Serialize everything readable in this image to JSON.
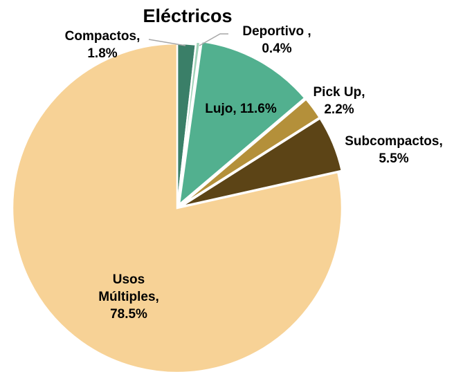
{
  "chart_data": {
    "type": "pie",
    "title": "Eléctricos",
    "slices": [
      {
        "name": "Compactos",
        "value": 1.8,
        "label_lines": [
          "Compactos,",
          "1.8%"
        ],
        "color": "#3a7f68"
      },
      {
        "name": "Deportivo",
        "value": 0.4,
        "label_lines": [
          "Deportivo ,",
          "0.4%"
        ],
        "color": "#9fd3b8"
      },
      {
        "name": "Lujo",
        "value": 11.6,
        "label_lines": [
          "Lujo, 11.6%"
        ],
        "color": "#52b08f"
      },
      {
        "name": "Pick Up",
        "value": 2.2,
        "label_lines": [
          "Pick Up,",
          "2.2%"
        ],
        "color": "#b4903a"
      },
      {
        "name": "Subcompactos",
        "value": 5.5,
        "label_lines": [
          "Subcompactos,",
          "5.5%"
        ],
        "color": "#5c4416"
      },
      {
        "name": "Usos Múltiples",
        "value": 78.5,
        "label_lines": [
          "Usos",
          "Múltiples,",
          "78.5%"
        ],
        "color": "#f7d296"
      }
    ],
    "legend": "none",
    "leader_line_color": "#a6a6a6"
  }
}
